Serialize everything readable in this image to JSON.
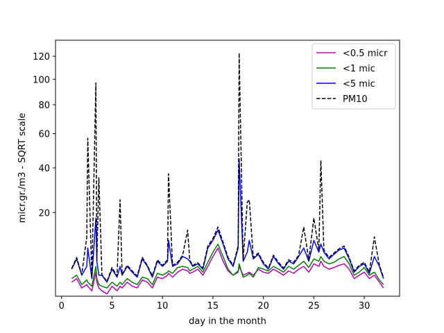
{
  "chart_data": {
    "type": "line",
    "title": "",
    "xlabel": "day in the month",
    "ylabel": "micr.gr./m3 - SQRT scale",
    "xlim": [
      -0.6,
      33.5
    ],
    "ylim": [
      1.0,
      135.0
    ],
    "y_scale": "sqrt",
    "x_ticks": [
      0,
      5,
      10,
      15,
      20,
      25,
      30
    ],
    "y_ticks": [
      20,
      40,
      60,
      80,
      100,
      120
    ],
    "grid": false,
    "legend_position": "top-right",
    "x": [
      1,
      1.5,
      2,
      2.5,
      2.6,
      3,
      3.4,
      3.5,
      3.7,
      4,
      4.5,
      5,
      5.5,
      5.8,
      6,
      6.5,
      7,
      7.5,
      8,
      8.5,
      9,
      9.5,
      10,
      10.5,
      10.6,
      11,
      11.5,
      12,
      12.5,
      12.7,
      13,
      13.5,
      14,
      14.5,
      15,
      15.5,
      16,
      16.5,
      17,
      17.5,
      17.6,
      18,
      18.4,
      18.6,
      19,
      19.5,
      20,
      20.5,
      21,
      21.5,
      22,
      22.5,
      23,
      23.5,
      24,
      24.5,
      25,
      25.5,
      25.7,
      26,
      26.5,
      27,
      27.5,
      28,
      28.5,
      29,
      29.5,
      30,
      30.5,
      31,
      31.5,
      31.9
    ],
    "series": [
      {
        "name": "<0.5 micr",
        "color": "#bf00bf",
        "dash": "solid",
        "values": [
          2.5,
          3.0,
          1.8,
          2.2,
          2.0,
          1.5,
          4.0,
          2.5,
          1.8,
          1.5,
          1.2,
          2.0,
          1.5,
          2.0,
          1.8,
          2.5,
          2.0,
          1.8,
          2.8,
          2.5,
          1.8,
          3.2,
          3.0,
          3.5,
          3.8,
          3.2,
          4.0,
          4.5,
          4.2,
          3.8,
          4.0,
          4.5,
          3.5,
          5.0,
          7.0,
          9.0,
          6.0,
          4.2,
          3.5,
          4.0,
          5.0,
          3.5,
          3.8,
          4.0,
          3.5,
          4.5,
          4.0,
          3.8,
          4.5,
          4.0,
          3.5,
          4.2,
          3.8,
          4.5,
          5.0,
          4.0,
          5.5,
          5.0,
          6.0,
          5.0,
          4.5,
          4.8,
          5.2,
          5.5,
          4.5,
          3.0,
          3.5,
          4.0,
          3.0,
          3.5,
          2.5,
          1.8
        ]
      },
      {
        "name": "<1 mic",
        "color": "#008000",
        "dash": "solid",
        "values": [
          3.0,
          3.5,
          2.2,
          2.8,
          2.5,
          2.0,
          5.0,
          3.0,
          2.2,
          2.0,
          1.8,
          2.5,
          2.0,
          2.5,
          2.2,
          3.0,
          2.5,
          2.2,
          3.2,
          3.0,
          2.2,
          3.8,
          3.5,
          4.0,
          4.2,
          3.8,
          4.8,
          5.0,
          4.8,
          4.2,
          4.5,
          5.0,
          4.0,
          5.8,
          8.0,
          10.0,
          7.0,
          4.5,
          3.5,
          4.2,
          5.5,
          3.2,
          3.5,
          3.8,
          3.2,
          4.8,
          4.5,
          4.2,
          5.0,
          4.5,
          4.0,
          5.0,
          4.5,
          5.2,
          6.0,
          4.8,
          6.5,
          6.0,
          7.0,
          6.0,
          5.5,
          5.8,
          6.5,
          7.0,
          5.5,
          3.5,
          4.0,
          4.8,
          3.5,
          4.0,
          2.8,
          2.2
        ]
      },
      {
        "name": "<5 mic",
        "color": "#0000ff",
        "dash": "solid",
        "values": [
          4.5,
          6.5,
          3.5,
          5.0,
          9.0,
          3.0,
          18.0,
          6.0,
          3.5,
          3.5,
          2.5,
          4.5,
          3.2,
          5.0,
          3.5,
          5.0,
          4.0,
          3.2,
          6.5,
          5.0,
          3.2,
          6.0,
          5.0,
          6.0,
          11.0,
          5.0,
          5.5,
          7.0,
          6.5,
          6.0,
          5.0,
          5.5,
          4.5,
          9.0,
          11.0,
          14.0,
          10.0,
          6.5,
          5.0,
          9.0,
          45.0,
          6.0,
          8.0,
          11.0,
          6.5,
          7.5,
          5.5,
          4.5,
          7.0,
          5.5,
          4.5,
          6.0,
          5.5,
          7.0,
          9.0,
          6.0,
          11.0,
          8.0,
          10.0,
          8.0,
          6.5,
          7.5,
          8.5,
          9.0,
          6.5,
          4.0,
          5.0,
          5.5,
          3.8,
          7.0,
          5.0,
          3.0
        ]
      },
      {
        "name": "PM10",
        "color": "#000000",
        "dash": "dashed",
        "values": [
          4.6,
          6.8,
          3.6,
          12.0,
          57.0,
          3.2,
          97.0,
          6.2,
          35.0,
          3.6,
          2.6,
          4.8,
          3.4,
          25.0,
          3.6,
          5.2,
          4.2,
          3.4,
          6.8,
          5.2,
          3.4,
          6.3,
          5.2,
          6.3,
          37.0,
          5.2,
          5.8,
          7.3,
          14.0,
          6.2,
          5.2,
          5.7,
          4.7,
          9.5,
          11.5,
          15.0,
          10.5,
          6.8,
          5.2,
          9.5,
          123.0,
          6.3,
          24.0,
          25.0,
          6.8,
          7.8,
          5.8,
          4.7,
          7.3,
          5.8,
          4.7,
          6.3,
          5.8,
          7.3,
          15.0,
          6.3,
          18.0,
          8.5,
          44.0,
          8.5,
          6.8,
          7.8,
          8.8,
          9.5,
          6.8,
          4.2,
          5.2,
          5.8,
          4.0,
          12.0,
          5.2,
          3.2
        ]
      }
    ]
  }
}
